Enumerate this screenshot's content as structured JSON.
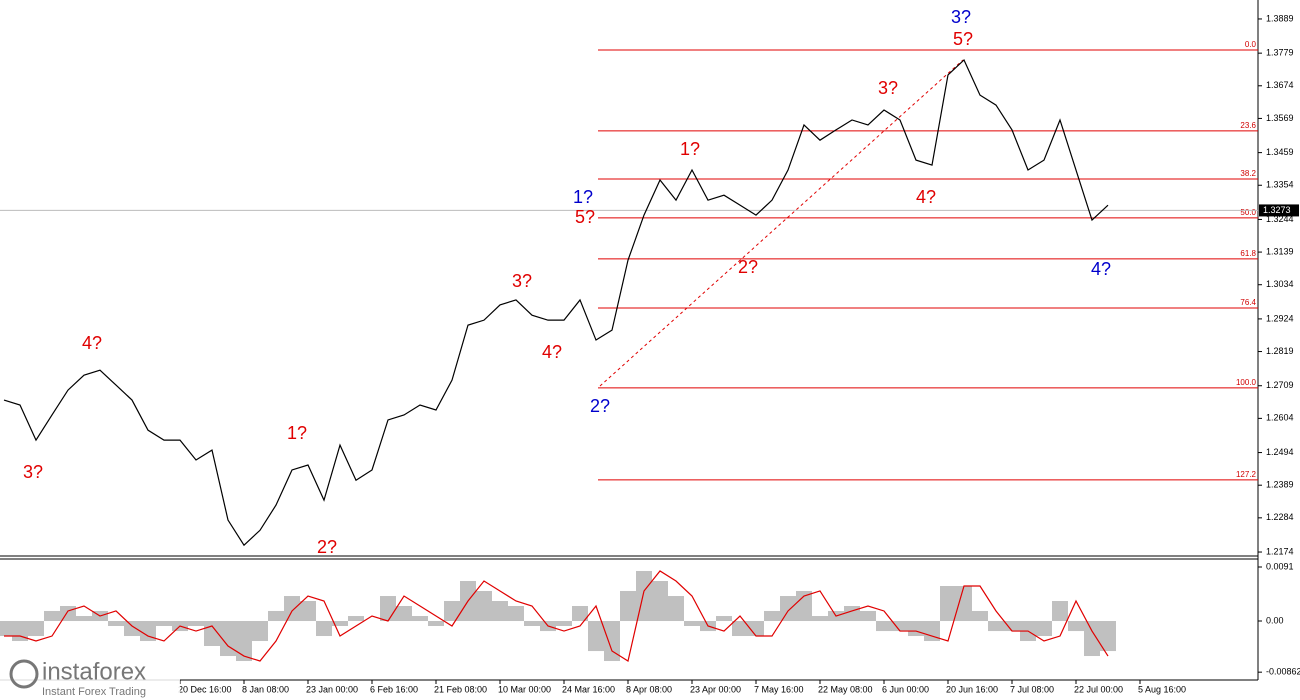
{
  "chart_data": [
    {
      "type": "line",
      "color": "#000000",
      "categories": [
        null,
        null,
        null,
        null,
        null,
        null,
        null,
        null,
        null,
        null,
        null,
        "20 Dec 16:00",
        null,
        null,
        null,
        "8 Jan 08:00",
        null,
        null,
        null,
        "23 Jan 00:00",
        null,
        null,
        null,
        "6 Feb 16:00",
        null,
        null,
        null,
        "21 Feb 08:00",
        null,
        null,
        null,
        "10 Mar 00:00",
        null,
        null,
        null,
        "24 Mar 16:00",
        null,
        null,
        null,
        "8 Apr 08:00",
        null,
        null,
        null,
        "23 Apr 00:00",
        null,
        null,
        null,
        "7 May 16:00",
        null,
        null,
        null,
        "22 May 08:00",
        null,
        null,
        null,
        "6 Jun 00:00",
        null,
        null,
        null,
        "20 Jun 16:00",
        null,
        null,
        null,
        "7 Jul 08:00",
        null,
        null,
        null,
        "22 Jul 00:00",
        null,
        null,
        null,
        "5 Aug 16:00"
      ],
      "values": [
        1.2663,
        1.2647,
        1.2534,
        1.2615,
        1.2695,
        1.2743,
        1.2759,
        1.2711,
        1.2663,
        1.2566,
        1.2534,
        1.2534,
        1.247,
        1.2502,
        1.2277,
        1.2196,
        1.2244,
        1.2325,
        1.2438,
        1.2454,
        1.2341,
        1.2518,
        1.2405,
        1.2438,
        1.2599,
        1.2615,
        1.2647,
        1.2631,
        1.2727,
        1.2904,
        1.292,
        1.2969,
        1.2985,
        1.2936,
        1.292,
        1.292,
        1.2985,
        1.2856,
        1.2888,
        1.3113,
        1.3258,
        1.3371,
        1.3306,
        1.3403,
        1.3306,
        1.3322,
        1.329,
        1.3258,
        1.3306,
        1.3403,
        1.3548,
        1.3499,
        1.3532,
        1.3564,
        1.3548,
        1.3596,
        1.3564,
        1.3435,
        1.3419,
        1.3709,
        1.3757,
        1.3644,
        1.3612,
        1.3532,
        1.3403,
        1.3435,
        1.3564,
        1.3403,
        1.3242,
        1.329,
        null,
        null
      ],
      "ylim": [
        1.2158,
        1.395
      ],
      "yticks": [
        1.3889,
        1.3779,
        1.3674,
        1.3569,
        1.3459,
        1.3354,
        1.3244,
        1.3139,
        1.3034,
        1.2924,
        1.2819,
        1.2709,
        1.2604,
        1.2494,
        1.2389,
        1.2284,
        1.2174
      ],
      "current_price": 1.3273,
      "fib_color": "#e00000",
      "fib_levels": [
        {
          "level": {
            "value": 0,
            "label": "0.0"
          },
          "price": 1.3789
        },
        {
          "level": 23.6,
          "price": 1.3529
        },
        {
          "level": 38.2,
          "price": 1.3374
        },
        {
          "level": {
            "value": 50,
            "label": "50.0"
          },
          "price": 1.3249
        },
        {
          "level": 61.8,
          "price": 1.3117
        },
        {
          "level": 76.4,
          "price": 1.2959
        },
        {
          "level": {
            "value": 100,
            "label": "100.0"
          },
          "price": 1.2702
        },
        {
          "level": 127.2,
          "price": 1.2406
        }
      ],
      "annotations": [
        {
          "text": "3?",
          "color": "#e00000"
        },
        {
          "text": "4?",
          "color": "#e00000"
        },
        {
          "text": "1?",
          "color": "#e00000"
        },
        {
          "text": "2?",
          "color": "#e00000"
        },
        {
          "text": "3?",
          "color": "#e00000"
        },
        {
          "text": "4?",
          "color": "#e00000"
        },
        {
          "text": "1?",
          "color": "#0000cc"
        },
        {
          "text": "5?",
          "color": "#e00000"
        },
        {
          "text": "2?",
          "color": "#0000cc"
        },
        {
          "text": "1?",
          "color": "#e00000"
        },
        {
          "text": "2?",
          "color": "#e00000"
        },
        {
          "text": "3?",
          "color": "#e00000"
        },
        {
          "text": "4?",
          "color": "#e00000"
        },
        {
          "text": "3?",
          "color": "#0000cc"
        },
        {
          "text": "5?",
          "color": "#e00000"
        },
        {
          "text": "4?",
          "color": "#0000cc"
        }
      ],
      "logo": {
        "name": "instaforex",
        "tagline": "Instant Forex Trading"
      }
    },
    {
      "type": "bar",
      "color": "#c0c0c0",
      "signal_color": "#e00000",
      "values": [
        -0.00253,
        -0.00337,
        -0.00253,
        0.00169,
        0.00253,
        0.00084,
        0.00169,
        -0.00084,
        -0.00253,
        -0.00337,
        -0.00084,
        -0.00169,
        -0.00084,
        -0.00421,
        -0.0059,
        -0.00674,
        -0.00337,
        0.00169,
        0.00421,
        0.00337,
        -0.00253,
        -0.00084,
        0.00084,
        0,
        0.00421,
        0.00253,
        0.00084,
        -0.00084,
        0.00337,
        0.00674,
        0.00506,
        0.00337,
        0.00253,
        -0.00084,
        -0.00169,
        -0.00084,
        0.00253,
        -0.00506,
        -0.00674,
        0.00506,
        0.00843,
        0.00674,
        0.00421,
        -0.00084,
        -0.00169,
        0.00084,
        -0.00253,
        -0.00253,
        0.00169,
        0.00421,
        0.00506,
        0.00084,
        0.00169,
        0.00253,
        0.00169,
        -0.00169,
        -0.00169,
        -0.00253,
        -0.00337,
        0.0059,
        0.0059,
        0.00169,
        -0.00169,
        -0.00169,
        -0.00337,
        -0.00253,
        0.00337,
        -0.00169,
        -0.0059,
        -0.00506,
        null,
        null
      ],
      "signal": [
        -0.00253,
        -0.00253,
        -0.00337,
        -0.00253,
        0.00169,
        0.00253,
        0.00084,
        0.00169,
        -0.00084,
        -0.00253,
        -0.00337,
        -0.00084,
        -0.00169,
        -0.00084,
        -0.00421,
        -0.0059,
        -0.00674,
        -0.00337,
        0.00169,
        0.00421,
        0.00337,
        -0.00253,
        -0.00084,
        0.00084,
        0,
        0.00421,
        0.00253,
        0.00084,
        -0.00084,
        0.00337,
        0.00674,
        0.00506,
        0.00337,
        0.00253,
        -0.00084,
        -0.00169,
        -0.00084,
        0.00253,
        -0.00506,
        -0.00674,
        0.00506,
        0.00843,
        0.00674,
        0.00421,
        -0.00084,
        -0.00169,
        0.00084,
        -0.00253,
        -0.00253,
        0.00169,
        0.00421,
        0.00506,
        0.00084,
        0.00169,
        0.00253,
        0.00169,
        -0.00169,
        -0.00169,
        -0.00253,
        -0.00337,
        0.0059,
        0.0059,
        0.00169,
        -0.00169,
        -0.00169,
        -0.00337,
        -0.00253,
        0.00337,
        -0.00169,
        -0.0059,
        null,
        null
      ],
      "ylim": [
        -0.00994,
        0.01028
      ],
      "yticks": [
        0.0091,
        {
          "value": 0,
          "label": "0.00"
        },
        -0.00862
      ]
    }
  ]
}
